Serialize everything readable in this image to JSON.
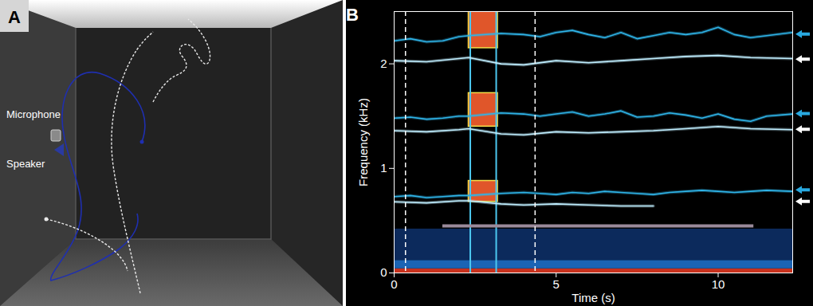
{
  "panel_a": {
    "panel": "A",
    "labels": {
      "microphone": "Microphone",
      "speaker": "Speaker"
    }
  },
  "chart_data": {
    "type": "spectrogram",
    "panel": "B",
    "x_label": "Time (s)",
    "y_label": "Frequency (kHz)",
    "xlim": [
      0,
      12.3
    ],
    "xticks": [
      0,
      5,
      10
    ],
    "ylim": [
      0,
      2.5
    ],
    "yticks": [
      0,
      1,
      2
    ],
    "noise_band": [
      {
        "y1": 0,
        "y2": 0.04,
        "color": "#c8321e"
      },
      {
        "y1": 0.04,
        "y2": 0.12,
        "color": "#1b64b4"
      },
      {
        "y1": 0.12,
        "y2": 0.42,
        "color": "#0c2a5c"
      }
    ],
    "series": [
      {
        "color": "#2fb4e8",
        "x": [
          0,
          0.5,
          1,
          1.5,
          2,
          2.3,
          3.3,
          4,
          4.5,
          5,
          5.5,
          6,
          6.5,
          7,
          7.5,
          8,
          8.5,
          9,
          9.5,
          10,
          10.5,
          11,
          11.5,
          12.3
        ],
        "harmonics": [
          [
            0.73,
            0.74,
            0.72,
            0.73,
            0.74,
            0.74,
            0.76,
            0.77,
            0.76,
            0.75,
            0.77,
            0.76,
            0.78,
            0.77,
            0.76,
            0.75,
            0.77,
            0.78,
            0.79,
            0.78,
            0.77,
            0.78,
            0.79,
            0.78
          ],
          [
            1.48,
            1.49,
            1.47,
            1.48,
            1.5,
            1.5,
            1.53,
            1.52,
            1.5,
            1.52,
            1.54,
            1.5,
            1.52,
            1.55,
            1.49,
            1.5,
            1.53,
            1.51,
            1.48,
            1.52,
            1.47,
            1.45,
            1.5,
            1.52
          ],
          [
            2.22,
            2.24,
            2.21,
            2.22,
            2.26,
            2.27,
            2.29,
            2.28,
            2.26,
            2.3,
            2.32,
            2.28,
            2.25,
            2.3,
            2.24,
            2.27,
            2.3,
            2.28,
            2.3,
            2.35,
            2.28,
            2.25,
            2.27,
            2.3
          ]
        ]
      },
      {
        "color": "#bfeeff",
        "x": [
          0,
          1,
          2,
          2.3,
          3.3,
          4,
          5,
          6,
          7,
          8,
          9,
          10,
          11,
          12.3
        ],
        "harmonics": [
          [
            0.68,
            0.67,
            0.69,
            0.69,
            0.66,
            0.65,
            0.66,
            0.65,
            0.64,
            0.64,
            null,
            null,
            null,
            null
          ],
          [
            1.36,
            1.35,
            1.37,
            1.38,
            1.33,
            1.32,
            1.35,
            1.34,
            1.35,
            1.36,
            1.38,
            1.4,
            1.38,
            1.37
          ],
          [
            2.03,
            2.02,
            2.05,
            2.06,
            2.0,
            1.99,
            2.03,
            2.01,
            2.03,
            2.05,
            2.07,
            2.08,
            2.06,
            2.05
          ]
        ]
      }
    ],
    "playback": {
      "x1": 2.3,
      "x2": 3.2,
      "bands": [
        {
          "y1": 0.68,
          "y2": 0.88,
          "color": "#e0562a"
        },
        {
          "y1": 1.4,
          "y2": 1.72,
          "color": "#e0562a"
        },
        {
          "y1": 2.15,
          "y2": 2.55,
          "color": "#e0562a"
        }
      ]
    },
    "clicks": [
      2.35,
      3.15
    ],
    "markers": [
      0.35,
      4.35
    ],
    "stimulus": {
      "x1": 1.5,
      "x2": 11.1,
      "y": 0.45,
      "color": "#9a8a9a"
    },
    "arrows": [
      {
        "y": 2.28,
        "color": "#29a9e0"
      },
      {
        "y": 2.04,
        "color": "#ffffff"
      },
      {
        "y": 1.52,
        "color": "#29a9e0"
      },
      {
        "y": 1.37,
        "color": "#ffffff"
      },
      {
        "y": 0.79,
        "color": "#29a9e0"
      },
      {
        "y": 0.68,
        "color": "#ffffff"
      }
    ]
  }
}
